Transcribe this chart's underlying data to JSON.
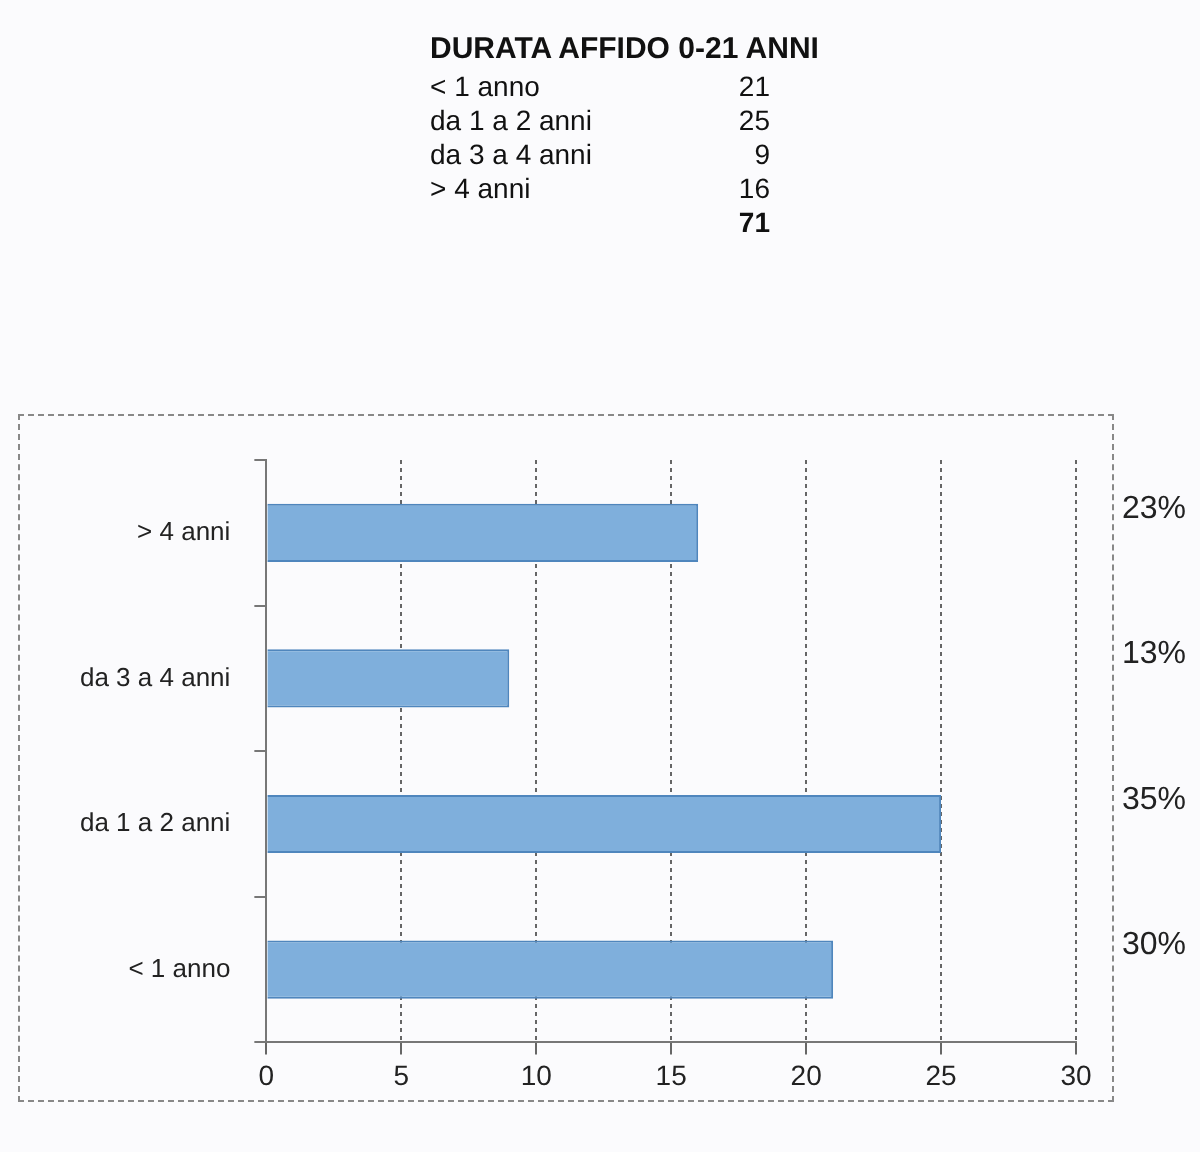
{
  "chart_data": [
    {
      "type": "other",
      "title": "DURATA AFFIDO 0-21 ANNI",
      "annotations": [
        "< 1 anno",
        "21",
        "da 1 a 2 anni",
        "25",
        "da 3 a 4 anni",
        "9",
        "> 4 anni",
        "16",
        "71"
      ]
    },
    {
      "type": "bar",
      "orientation": "horizontal",
      "categories": [
        "> 4 anni",
        "da 3 a 4 anni",
        "da 1 a 2 anni",
        "< 1 anno"
      ],
      "values": [
        16,
        9,
        25,
        21
      ],
      "color": "#7fafdc",
      "xlim": [
        0,
        30
      ],
      "xticks": [
        0,
        5,
        10,
        15,
        20,
        25,
        30
      ],
      "grid": "x",
      "annotations": [
        "23%",
        "13%",
        "35%",
        "30%"
      ]
    }
  ]
}
